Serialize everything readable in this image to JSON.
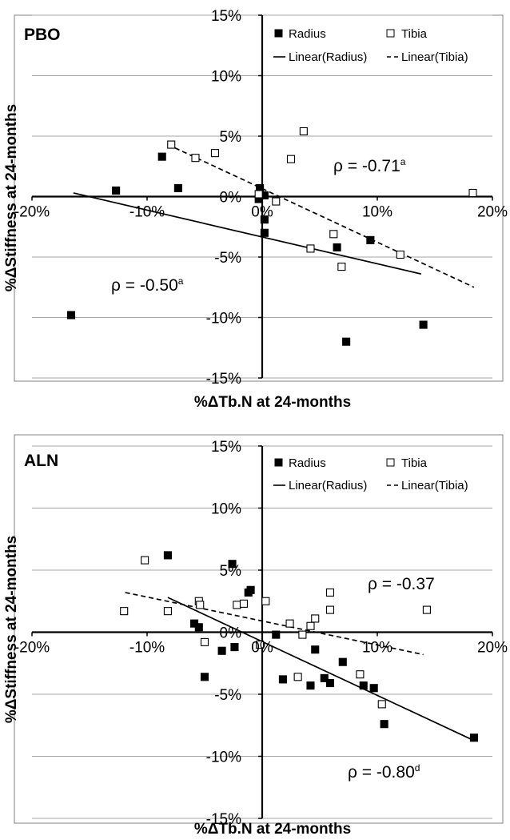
{
  "chart_data": [
    {
      "type": "scatter",
      "title": "PBO",
      "xlabel": "%ΔTb.N at 24-months",
      "ylabel": "%ΔStiffness at 24-months",
      "xlim": [
        -20,
        20
      ],
      "ylim": [
        -15,
        15
      ],
      "x_ticks": [
        "-20%",
        "-10%",
        "0%",
        "10%",
        "20%"
      ],
      "y_ticks": [
        "-15%",
        "-10%",
        "-5%",
        "0%",
        "5%",
        "10%",
        "15%"
      ],
      "grid": "horizontal",
      "legend": {
        "placement": "top-right",
        "items": [
          "Radius",
          "Tibia",
          "Linear(Radius)",
          "Linear(Tibia)"
        ]
      },
      "series": [
        {
          "name": "Radius",
          "marker": "filled-square",
          "points": [
            [
              -16.6,
              -9.8
            ],
            [
              -12.7,
              0.5
            ],
            [
              -8.7,
              3.3
            ],
            [
              -7.3,
              0.7
            ],
            [
              -0.3,
              -0.2
            ],
            [
              -0.2,
              0.7
            ],
            [
              0.2,
              -1.9
            ],
            [
              0.2,
              0.1
            ],
            [
              0.2,
              -3.0
            ],
            [
              6.5,
              -4.2
            ],
            [
              7.3,
              -12.0
            ],
            [
              9.4,
              -3.6
            ],
            [
              14.0,
              -10.6
            ]
          ]
        },
        {
          "name": "Tibia",
          "marker": "open-square",
          "points": [
            [
              -7.9,
              4.3
            ],
            [
              -5.8,
              3.2
            ],
            [
              -4.1,
              3.6
            ],
            [
              -0.3,
              0.2
            ],
            [
              1.2,
              -0.4
            ],
            [
              2.5,
              3.1
            ],
            [
              3.6,
              5.4
            ],
            [
              4.2,
              -4.3
            ],
            [
              6.2,
              -3.1
            ],
            [
              6.9,
              -5.8
            ],
            [
              12.0,
              -4.8
            ],
            [
              18.3,
              0.3
            ]
          ]
        }
      ],
      "trendlines": [
        {
          "name": "Linear(Radius)",
          "style": "solid",
          "from": [
            -16.4,
            0.3
          ],
          "to": [
            13.8,
            -6.4
          ]
        },
        {
          "name": "Linear(Tibia)",
          "style": "dashed",
          "from": [
            -8.2,
            4.3
          ],
          "to": [
            18.4,
            -7.5
          ]
        }
      ],
      "annotations": [
        {
          "text": "ρ = -0.71",
          "sup": "a"
        },
        {
          "text": "ρ = -0.50",
          "sup": "a"
        }
      ]
    },
    {
      "type": "scatter",
      "title": "ALN",
      "xlabel": "%ΔTb.N at 24-months",
      "ylabel": "%ΔStiffness at 24-months",
      "xlim": [
        -20,
        20
      ],
      "ylim": [
        -15,
        15
      ],
      "x_ticks": [
        "-20%",
        "-10%",
        "0%",
        "10%",
        "20%"
      ],
      "y_ticks": [
        "-15%",
        "-10%",
        "-5%",
        "0%",
        "5%",
        "10%",
        "15%"
      ],
      "grid": "horizontal",
      "legend": {
        "placement": "top-right",
        "items": [
          "Radius",
          "Tibia",
          "Linear(Radius)",
          "Linear(Tibia)"
        ]
      },
      "series": [
        {
          "name": "Radius",
          "marker": "filled-square",
          "points": [
            [
              -8.2,
              6.2
            ],
            [
              -5.9,
              0.7
            ],
            [
              -5.5,
              0.4
            ],
            [
              -5.0,
              -3.6
            ],
            [
              -3.5,
              -1.5
            ],
            [
              -2.6,
              5.5
            ],
            [
              -2.4,
              -1.2
            ],
            [
              -1.2,
              3.2
            ],
            [
              -1.0,
              3.4
            ],
            [
              1.2,
              -0.2
            ],
            [
              1.8,
              -3.8
            ],
            [
              4.2,
              -4.3
            ],
            [
              4.6,
              -1.4
            ],
            [
              5.4,
              -3.7
            ],
            [
              5.9,
              -4.1
            ],
            [
              7.0,
              -2.4
            ],
            [
              8.8,
              -4.3
            ],
            [
              9.7,
              -4.5
            ],
            [
              10.6,
              -7.4
            ],
            [
              18.4,
              -8.5
            ]
          ]
        },
        {
          "name": "Tibia",
          "marker": "open-square",
          "points": [
            [
              -12.0,
              1.7
            ],
            [
              -10.2,
              5.8
            ],
            [
              -8.2,
              1.7
            ],
            [
              -5.5,
              2.5
            ],
            [
              -5.4,
              2.2
            ],
            [
              -5.0,
              -0.8
            ],
            [
              -2.2,
              2.2
            ],
            [
              -1.6,
              2.3
            ],
            [
              -0.2,
              -1.0
            ],
            [
              0.3,
              2.5
            ],
            [
              2.4,
              0.7
            ],
            [
              3.1,
              -3.6
            ],
            [
              3.5,
              -0.2
            ],
            [
              4.2,
              0.5
            ],
            [
              4.6,
              1.1
            ],
            [
              5.9,
              1.8
            ],
            [
              5.9,
              3.2
            ],
            [
              8.5,
              -3.4
            ],
            [
              10.4,
              -5.8
            ],
            [
              14.3,
              1.8
            ]
          ]
        }
      ],
      "trendlines": [
        {
          "name": "Linear(Radius)",
          "style": "solid",
          "from": [
            -8.2,
            2.8
          ],
          "to": [
            18.1,
            -8.6
          ]
        },
        {
          "name": "Linear(Tibia)",
          "style": "dashed",
          "from": [
            -11.9,
            3.2
          ],
          "to": [
            14.0,
            -1.8
          ]
        }
      ],
      "annotations": [
        {
          "text": "ρ = -0.37",
          "sup": ""
        },
        {
          "text": "ρ = -0.80",
          "sup": "d"
        }
      ]
    }
  ]
}
